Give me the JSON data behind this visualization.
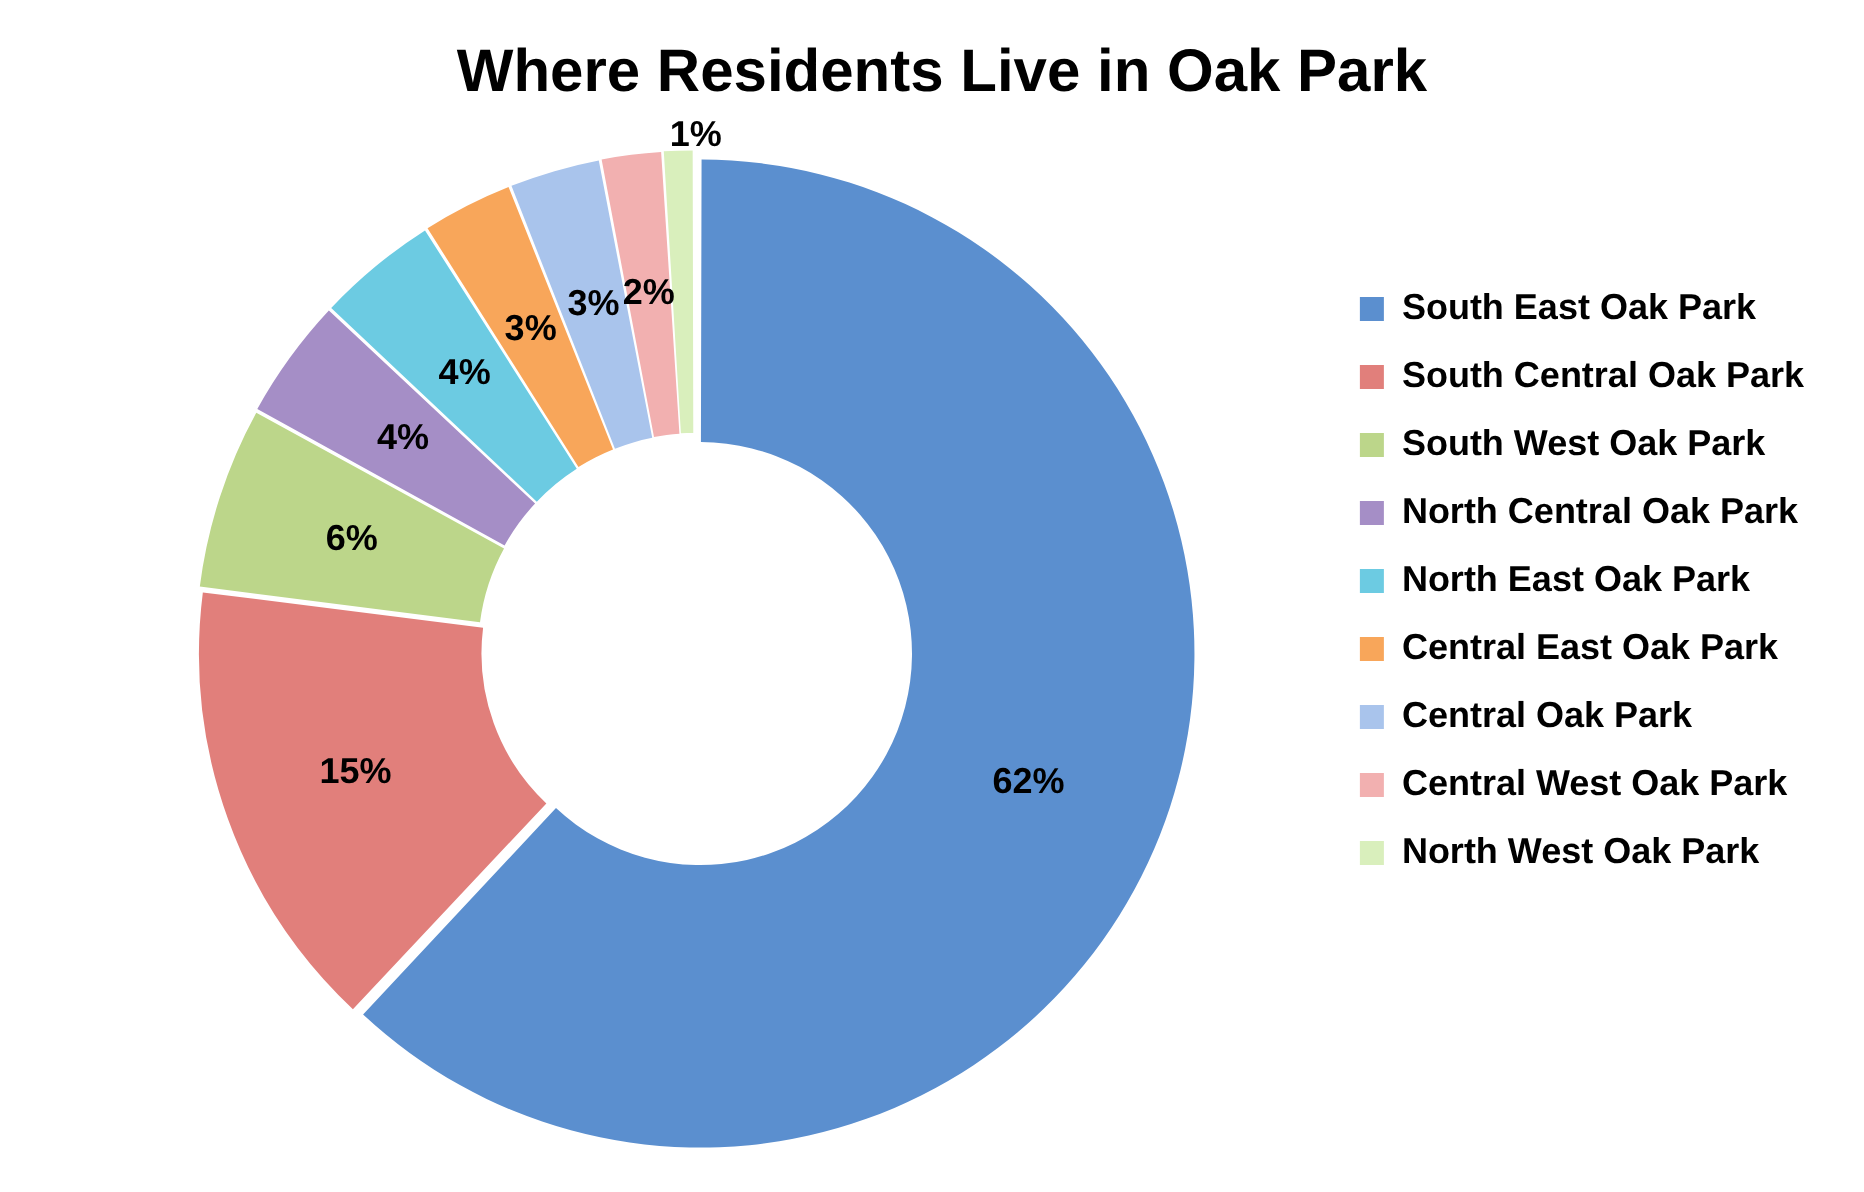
{
  "chart_data": {
    "type": "donut",
    "title": "Where Residents Live in Oak Park",
    "categories": [
      "South East Oak Park",
      "South Central Oak Park",
      "South West Oak Park",
      "North Central Oak Park",
      "North East Oak Park",
      "Central East Oak Park",
      "Central Oak Park",
      "Central West Oak Park",
      "North West Oak Park"
    ],
    "values": [
      62,
      15,
      6,
      4,
      4,
      3,
      3,
      2,
      1
    ],
    "value_labels": [
      "62%",
      "15%",
      "6%",
      "4%",
      "4%",
      "3%",
      "3%",
      "2%",
      "1%"
    ],
    "colors": [
      "#5b8fcf",
      "#e17f7b",
      "#bcd68a",
      "#a58ec6",
      "#6ccbe2",
      "#f8a65a",
      "#a9c4ec",
      "#f2b0b0",
      "#d9efbc"
    ],
    "legend": "right"
  }
}
